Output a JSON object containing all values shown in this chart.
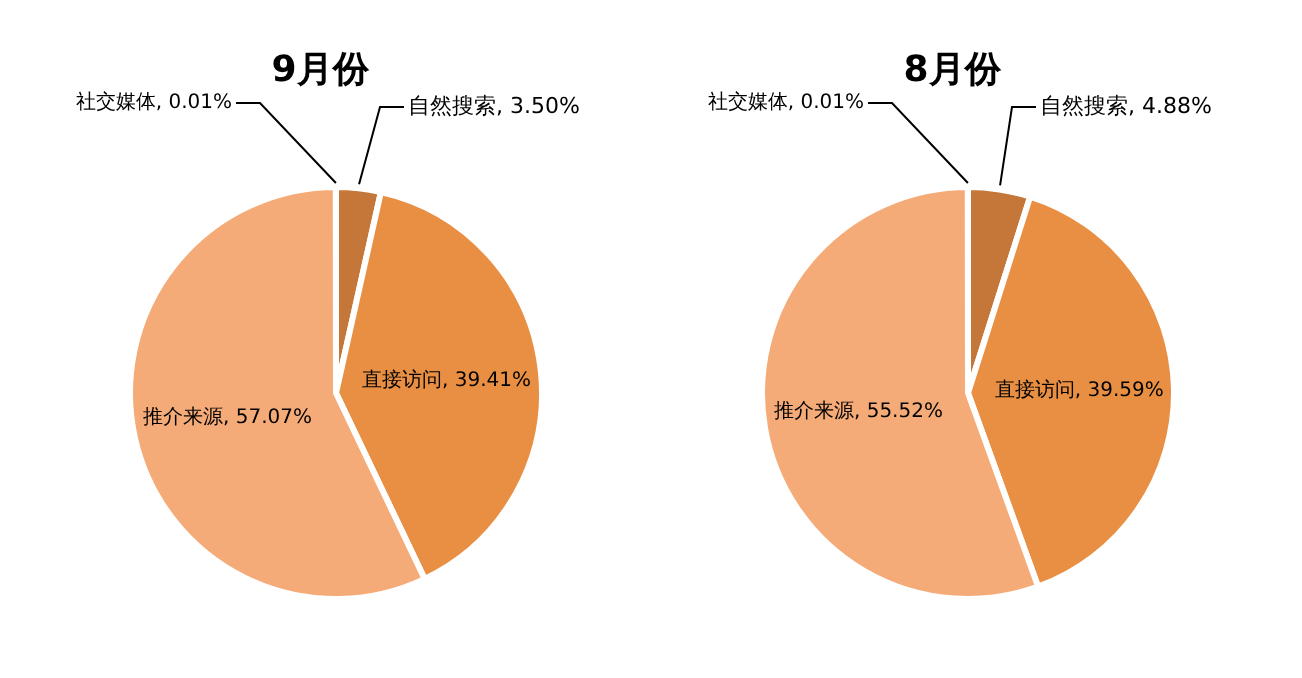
{
  "chart_data": [
    {
      "type": "pie",
      "title": "9月份",
      "categories": [
        "自然搜索",
        "直接访问",
        "推介来源",
        "社交媒体"
      ],
      "values": [
        3.5,
        39.41,
        57.07,
        0.01
      ],
      "colors": [
        "#c5773a",
        "#e98f43",
        "#f5ab78",
        "#b0602a"
      ],
      "value_labels": [
        "3.50%",
        "39.41%",
        "57.07%",
        "0.01%"
      ]
    },
    {
      "type": "pie",
      "title": "8月份",
      "categories": [
        "自然搜索",
        "直接访问",
        "推介来源",
        "社交媒体"
      ],
      "values": [
        4.88,
        39.59,
        55.52,
        0.01
      ],
      "colors": [
        "#c5773a",
        "#e98f43",
        "#f5ab78",
        "#b0602a"
      ],
      "value_labels": [
        "4.88%",
        "39.59%",
        "55.52%",
        "0.01%"
      ]
    }
  ]
}
